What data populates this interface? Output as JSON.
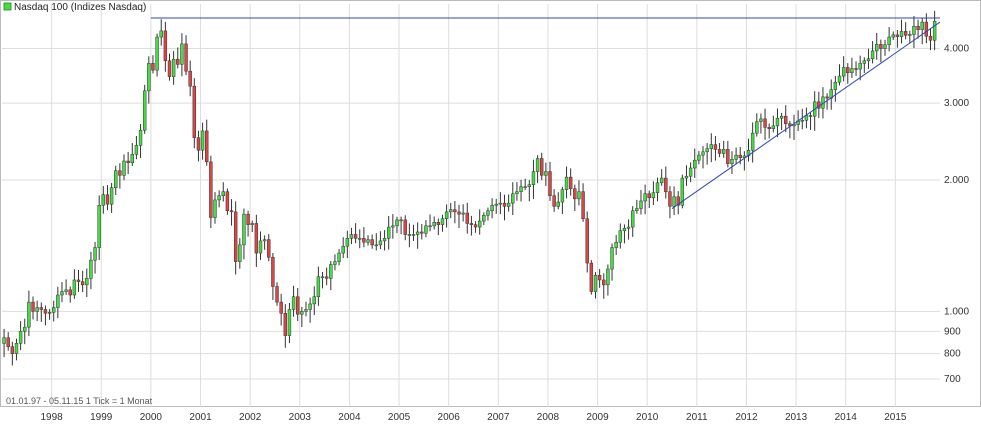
{
  "chart_data": {
    "type": "candlestick",
    "title": "Nasdaq 100 (Indizes Nasdaq)",
    "info_text": "01.01.97 - 05.11.15   1 Tick = 1 Monat",
    "scale": "log",
    "ylim": [
      650,
      4800
    ],
    "xlim": [
      1997.0,
      2015.9
    ],
    "y_ticks": [
      {
        "value": 700,
        "label": "700"
      },
      {
        "value": 800,
        "label": "800"
      },
      {
        "value": 900,
        "label": "900"
      },
      {
        "value": 1000,
        "label": "1.000"
      },
      {
        "value": 2000,
        "label": "2.000"
      },
      {
        "value": 3000,
        "label": "3.000"
      },
      {
        "value": 4000,
        "label": "4.000"
      }
    ],
    "x_ticks": [
      {
        "value": 1998,
        "label": "1998"
      },
      {
        "value": 1999,
        "label": "1999"
      },
      {
        "value": 2000,
        "label": "2000"
      },
      {
        "value": 2001,
        "label": "2001"
      },
      {
        "value": 2002,
        "label": "2002"
      },
      {
        "value": 2003,
        "label": "2003"
      },
      {
        "value": 2004,
        "label": "2004"
      },
      {
        "value": 2005,
        "label": "2005"
      },
      {
        "value": 2006,
        "label": "2006"
      },
      {
        "value": 2007,
        "label": "2007"
      },
      {
        "value": 2008,
        "label": "2008"
      },
      {
        "value": 2009,
        "label": "2009"
      },
      {
        "value": 2010,
        "label": "2010"
      },
      {
        "value": 2011,
        "label": "2011"
      },
      {
        "value": 2012,
        "label": "2012"
      },
      {
        "value": 2013,
        "label": "2013"
      },
      {
        "value": 2014,
        "label": "2014"
      },
      {
        "value": 2015,
        "label": "2015"
      }
    ],
    "colors": {
      "up": "#44dd44",
      "down": "#dd4444",
      "wick": "#333333",
      "grid": "#dddddd",
      "trendline": "#3344bb",
      "frame": "#bbbbbb"
    },
    "grid": true,
    "legend_position": "top-left",
    "trendlines": [
      {
        "x1": 2000.0,
        "y1": 4700,
        "x2": 2015.9,
        "y2": 4700
      },
      {
        "x1": 2010.5,
        "y1": 1720,
        "x2": 2015.9,
        "y2": 4600
      }
    ],
    "monthly_closes": [
      870,
      830,
      800,
      845,
      900,
      920,
      1050,
      1000,
      1020,
      1010,
      990,
      995,
      1020,
      1090,
      1110,
      1120,
      1090,
      1180,
      1170,
      1150,
      1190,
      1310,
      1400,
      1750,
      1850,
      1760,
      1920,
      2100,
      2050,
      2210,
      2190,
      2290,
      2400,
      2600,
      3200,
      3700,
      3570,
      4250,
      4390,
      3750,
      3450,
      3780,
      3680,
      4100,
      3550,
      3280,
      2500,
      2340,
      2590,
      2200,
      1640,
      1800,
      1840,
      1880,
      1700,
      1690,
      1300,
      1420,
      1670,
      1580,
      1590,
      1360,
      1450,
      1460,
      1330,
      1140,
      1050,
      990,
      880,
      1010,
      1080,
      985,
      1000,
      1010,
      1040,
      1080,
      1200,
      1200,
      1190,
      1280,
      1300,
      1360,
      1410,
      1470,
      1500,
      1470,
      1470,
      1440,
      1460,
      1420,
      1420,
      1450,
      1470,
      1560,
      1570,
      1620,
      1620,
      1500,
      1500,
      1500,
      1520,
      1510,
      1570,
      1570,
      1600,
      1580,
      1630,
      1690,
      1710,
      1690,
      1670,
      1680,
      1590,
      1580,
      1560,
      1610,
      1660,
      1700,
      1750,
      1760,
      1770,
      1740,
      1770,
      1860,
      1880,
      1930,
      1930,
      1950,
      2090,
      2240,
      2050,
      2090,
      1840,
      1740,
      1780,
      1900,
      2030,
      1910,
      1810,
      1880,
      1630,
      1290,
      1110,
      1210,
      1180,
      1150,
      1250,
      1400,
      1440,
      1530,
      1550,
      1560,
      1700,
      1720,
      1790,
      1860,
      1820,
      1870,
      1970,
      2020,
      1880,
      1740,
      1830,
      1750,
      2020,
      2040,
      2130,
      2220,
      2280,
      2320,
      2360,
      2410,
      2350,
      2300,
      2350,
      2180,
      2230,
      2280,
      2250,
      2270,
      2340,
      2560,
      2720,
      2760,
      2640,
      2620,
      2660,
      2770,
      2800,
      2690,
      2660,
      2680,
      2730,
      2740,
      2810,
      2800,
      3020,
      2920,
      3100,
      3080,
      3220,
      3350,
      3460,
      3620,
      3520,
      3600,
      3590,
      3700,
      3750,
      3790,
      3950,
      4090,
      4000,
      4080,
      4250,
      4300,
      4260,
      4380,
      4290,
      4310,
      4500,
      4420,
      4600,
      4270,
      4180,
      4620
    ]
  }
}
